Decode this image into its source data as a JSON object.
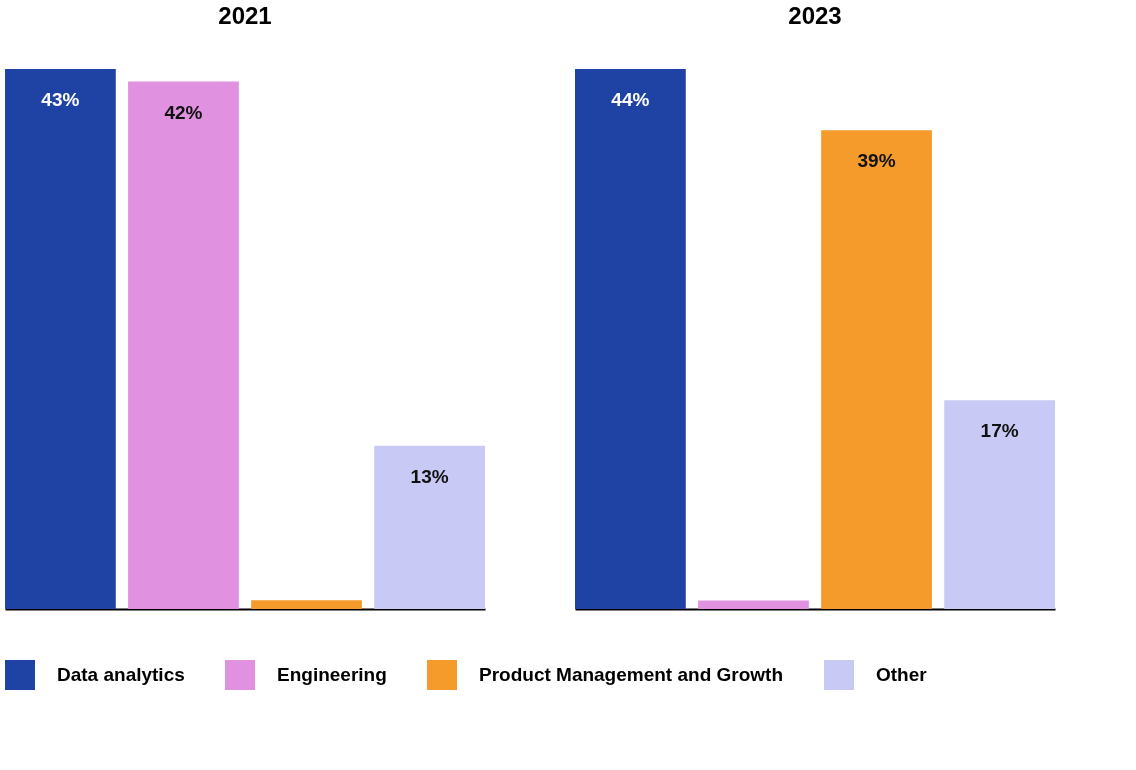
{
  "chart_data": [
    {
      "type": "bar",
      "title": "2021",
      "categories": [
        null
      ],
      "legend": "bottom",
      "series": [
        {
          "name": "Data analytics",
          "color": "#1f43a5",
          "values": [
            43
          ],
          "value_labels": [
            "43%"
          ]
        },
        {
          "name": "Engineering",
          "color": "#e092e0",
          "values": [
            42
          ],
          "value_labels": [
            "42%"
          ]
        },
        {
          "name": "Product Management and Growth",
          "color": "#f59b2b",
          "values": [
            0.7
          ],
          "value_labels": [
            null
          ]
        },
        {
          "name": "Other",
          "color": "#c8caf5",
          "values": [
            13
          ],
          "value_labels": [
            "13%"
          ]
        }
      ]
    },
    {
      "type": "bar",
      "title": "2023",
      "categories": [
        null
      ],
      "series": [
        {
          "name": "Data analytics",
          "color": "#1f43a5",
          "values": [
            44
          ],
          "value_labels": [
            "44%"
          ]
        },
        {
          "name": "Engineering",
          "color": "#e092e0",
          "values": [
            0.7
          ],
          "value_labels": [
            null
          ]
        },
        {
          "name": "Product Management and Growth",
          "color": "#f59b2b",
          "values": [
            39
          ],
          "value_labels": [
            "39%"
          ]
        },
        {
          "name": "Other",
          "color": "#c8caf5",
          "values": [
            17
          ],
          "value_labels": [
            "17%"
          ]
        }
      ]
    }
  ]
}
